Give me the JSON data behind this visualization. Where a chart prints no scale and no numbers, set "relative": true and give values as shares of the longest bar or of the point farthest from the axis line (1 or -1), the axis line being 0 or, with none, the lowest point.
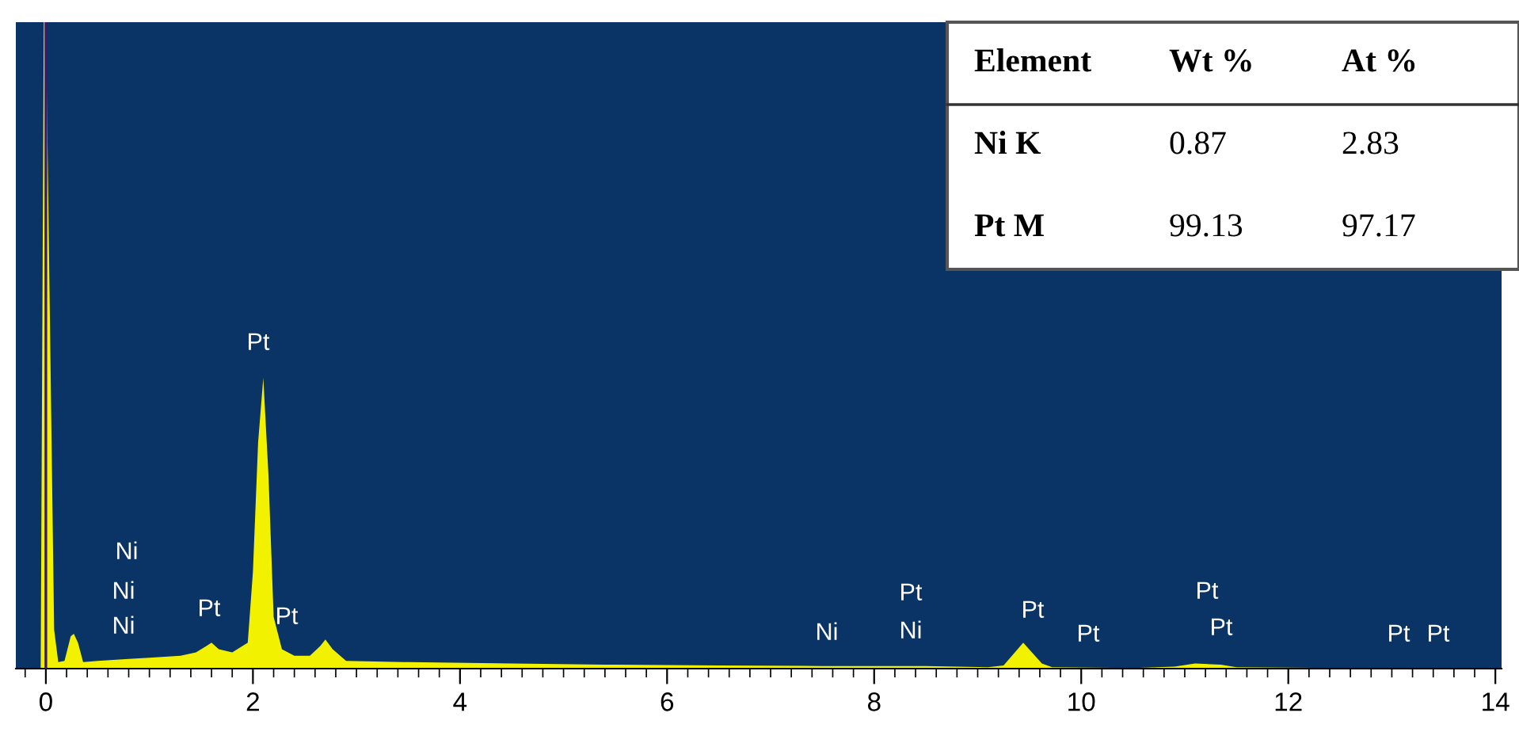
{
  "chart_data": {
    "type": "area",
    "relative": true,
    "x": [
      -0.29,
      -0.05,
      -0.02,
      0.0,
      0.08,
      0.12,
      0.18,
      0.24,
      0.27,
      0.31,
      0.36,
      0.5,
      0.8,
      1.0,
      1.3,
      1.45,
      1.55,
      1.6,
      1.67,
      1.8,
      1.95,
      2.0,
      2.05,
      2.1,
      2.15,
      2.2,
      2.28,
      2.4,
      2.55,
      2.65,
      2.7,
      2.77,
      2.9,
      3.5,
      4.5,
      5.5,
      6.5,
      7.5,
      8.5,
      9.1,
      9.25,
      9.44,
      9.62,
      9.72,
      10.5,
      10.9,
      11.1,
      11.35,
      11.5,
      12.5,
      14.06
    ],
    "series": [
      {
        "color": "#f2f200",
        "values": [
          0,
          0,
          1,
          1,
          0.06,
          0.01,
          0.012,
          0.05,
          0.054,
          0.04,
          0.01,
          0.012,
          0.015,
          0.017,
          0.02,
          0.025,
          0.035,
          0.04,
          0.03,
          0.025,
          0.04,
          0.15,
          0.35,
          0.45,
          0.3,
          0.08,
          0.03,
          0.02,
          0.02,
          0.035,
          0.045,
          0.03,
          0.012,
          0.01,
          0.008,
          0.006,
          0.005,
          0.004,
          0.004,
          0.002,
          0.005,
          0.04,
          0.008,
          0.002,
          0.001,
          0.003,
          0.008,
          0.006,
          0.002,
          0.001,
          0
        ]
      }
    ],
    "xlim": [
      -0.29,
      14.06
    ],
    "xticks": [
      0,
      2,
      4,
      6,
      8,
      10,
      12,
      14
    ],
    "grid": false,
    "tick_labels": "x",
    "ref_lines": [
      {
        "axis": "x",
        "value": 0,
        "color": "#3a1a6a"
      }
    ],
    "annotations": [
      "Ni",
      "Ni",
      "Ni",
      "Pt",
      "Pt",
      "Pt",
      "Ni",
      "Ni",
      "Pt",
      "Pt",
      "Pt",
      "Pt",
      "Pt",
      "Pt",
      "Pt",
      "Element",
      "Wt %",
      "At %",
      "Ni K",
      "0.87",
      "2.83",
      "Pt M",
      "99.13",
      "97.17"
    ]
  }
}
